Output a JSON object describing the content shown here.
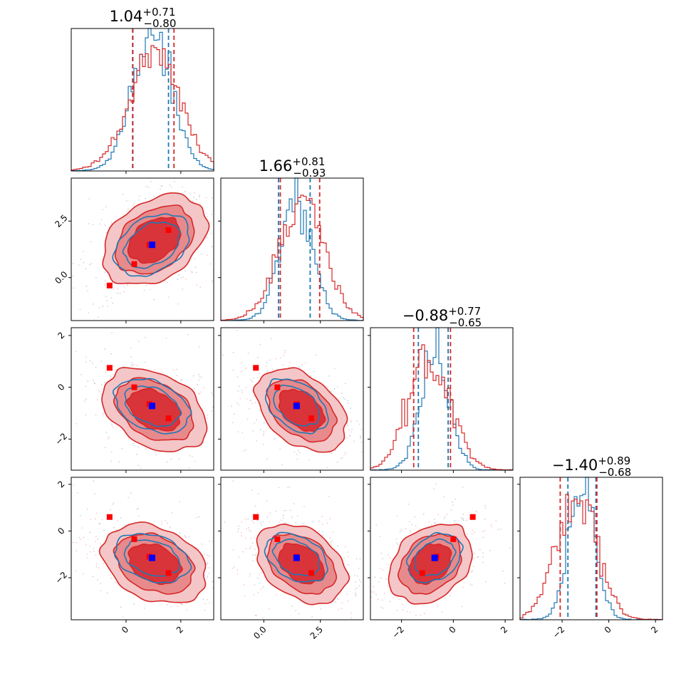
{
  "chart_data": {
    "type": "corner",
    "dimensions": 4,
    "titles": [
      {
        "value": "1.04",
        "plus": "+0.71",
        "minus": "−0.80"
      },
      {
        "value": "1.66",
        "plus": "+0.81",
        "minus": "−0.93"
      },
      {
        "value": "−0.88",
        "plus": "+0.77",
        "minus": "−0.65"
      },
      {
        "value": "−1.40",
        "plus": "+0.89",
        "minus": "−0.68"
      }
    ],
    "ranges": [
      [
        -2.0,
        3.2
      ],
      [
        -1.9,
        4.4
      ],
      [
        -3.2,
        2.3
      ],
      [
        -3.8,
        2.3
      ]
    ],
    "ticks": [
      {
        "values": [
          0,
          2
        ],
        "labels": [
          "0",
          "2"
        ]
      },
      {
        "values": [
          0,
          2.5
        ],
        "labels": [
          "0.0",
          "2.5"
        ]
      },
      {
        "values": [
          -2,
          0,
          2
        ],
        "labels": [
          "−2",
          "0",
          "2"
        ]
      },
      {
        "values": [
          -2,
          0,
          2
        ],
        "labels": [
          "−2",
          "0",
          "2"
        ]
      }
    ],
    "series": [
      {
        "color": "#1f77b4",
        "means": [
          0.95,
          1.45,
          -0.72,
          -1.15
        ],
        "sigmas": [
          0.72,
          0.72,
          0.55,
          0.55
        ],
        "quantiles": [
          [
            0.25,
            1.55
          ],
          [
            0.65,
            2.05
          ],
          [
            -1.35,
            -0.2
          ],
          [
            -1.75,
            -0.55
          ]
        ]
      },
      {
        "color": "#d62728",
        "means": [
          1.04,
          1.66,
          -0.88,
          -1.4
        ],
        "sigmas": [
          0.95,
          1.0,
          0.8,
          0.85
        ],
        "quantiles": [
          [
            0.24,
            1.75
          ],
          [
            0.73,
            2.47
          ],
          [
            -1.53,
            -0.11
          ],
          [
            -2.08,
            -0.51
          ]
        ]
      }
    ],
    "truth_blue": [
      0.95,
      1.45,
      -0.72,
      -1.15
    ],
    "markers_red": [
      [
        -0.6,
        -0.35,
        0.75,
        0.6
      ],
      [
        0.3,
        0.6,
        0.0,
        -0.35
      ],
      [
        0.85,
        1.45,
        -0.65,
        -1.1
      ],
      [
        1.55,
        2.1,
        -1.2,
        -1.8
      ]
    ]
  }
}
